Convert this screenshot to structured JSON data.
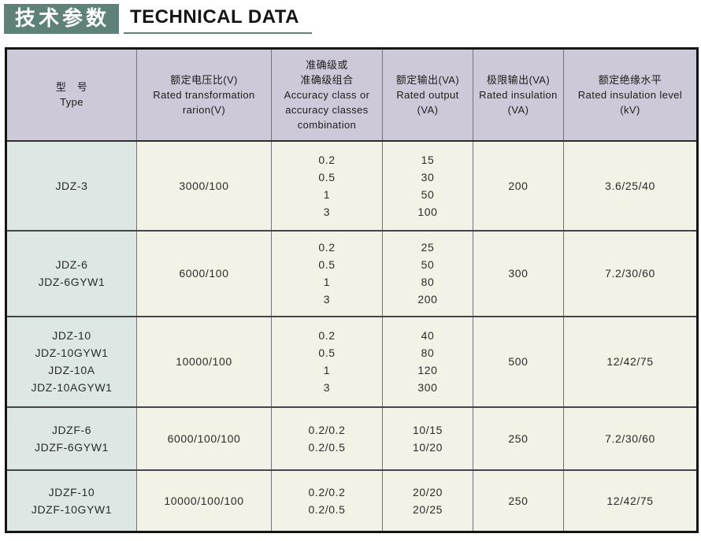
{
  "header": {
    "title_zh": "技术参数",
    "title_en": "TECHNICAL DATA"
  },
  "colors": {
    "accent_green": "#5e8279",
    "header_bg": "#cdc9d9",
    "type_col_bg": "#dde8e4",
    "cell_bg": "#f3f2e7",
    "border_outer": "#141414",
    "grid_line": "#74727e"
  },
  "table": {
    "columns": [
      {
        "key": "type",
        "lines": [
          "型　号",
          "Type"
        ]
      },
      {
        "key": "ratio",
        "lines": [
          "额定电压比(V)",
          "Rated transformation",
          "rarion(V)"
        ]
      },
      {
        "key": "accuracy",
        "lines": [
          "准确级或",
          "准确级组合",
          "Accuracy class or",
          "accuracy classes",
          "combination"
        ]
      },
      {
        "key": "output",
        "lines": [
          "额定输出(VA)",
          "Rated output",
          "(VA)"
        ]
      },
      {
        "key": "limit",
        "lines": [
          "极限输出(VA)",
          "Rated insulation",
          "(VA)"
        ]
      },
      {
        "key": "insulation",
        "lines": [
          "额定绝缘水平",
          "Rated insulation level",
          "(kV)"
        ]
      }
    ],
    "rows": [
      {
        "types": [
          "JDZ-3"
        ],
        "ratio": "3000/100",
        "accuracy": [
          "0.2",
          "0.5",
          "1",
          "3"
        ],
        "output": [
          "15",
          "30",
          "50",
          "100"
        ],
        "limit": "200",
        "insulation": "3.6/25/40"
      },
      {
        "types": [
          "JDZ-6",
          "JDZ-6GYW1"
        ],
        "ratio": "6000/100",
        "accuracy": [
          "0.2",
          "0.5",
          "1",
          "3"
        ],
        "output": [
          "25",
          "50",
          "80",
          "200"
        ],
        "limit": "300",
        "insulation": "7.2/30/60"
      },
      {
        "types": [
          "JDZ-10",
          "JDZ-10GYW1",
          "JDZ-10A",
          "JDZ-10AGYW1"
        ],
        "ratio": "10000/100",
        "accuracy": [
          "0.2",
          "0.5",
          "1",
          "3"
        ],
        "output": [
          "40",
          "80",
          "120",
          "300"
        ],
        "limit": "500",
        "insulation": "12/42/75"
      },
      {
        "types": [
          "JDZF-6",
          "JDZF-6GYW1"
        ],
        "ratio": "6000/100/100",
        "accuracy": [
          "0.2/0.2",
          "0.2/0.5"
        ],
        "output": [
          "10/15",
          "10/20"
        ],
        "limit": "250",
        "insulation": "7.2/30/60"
      },
      {
        "types": [
          "JDZF-10",
          "JDZF-10GYW1"
        ],
        "ratio": "10000/100/100",
        "accuracy": [
          "0.2/0.2",
          "0.2/0.5"
        ],
        "output": [
          "20/20",
          "20/25"
        ],
        "limit": "250",
        "insulation": "12/42/75"
      }
    ]
  }
}
